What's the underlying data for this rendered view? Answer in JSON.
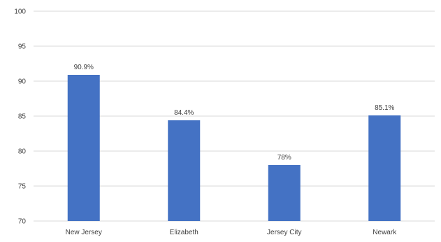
{
  "chart_data": {
    "type": "bar",
    "categories": [
      "New Jersey",
      "Elizabeth",
      "Jersey City",
      "Newark"
    ],
    "values": [
      90.9,
      84.4,
      78,
      85.1
    ],
    "data_labels": [
      "90.9%",
      "84.4%",
      "78%",
      "85.1%"
    ],
    "y_ticks": [
      "70",
      "75",
      "80",
      "85",
      "90",
      "95",
      "100"
    ],
    "ylim": [
      70,
      100
    ],
    "grid": true,
    "legend": "none",
    "title": "",
    "xlabel": "",
    "ylabel": "",
    "bar_color": "#4472c4"
  }
}
